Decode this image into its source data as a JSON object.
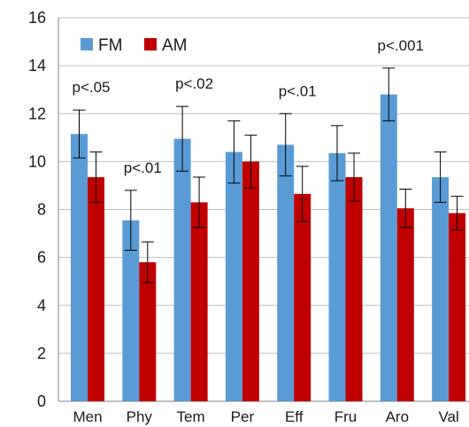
{
  "chart_data": {
    "type": "bar",
    "title": "",
    "xlabel": "",
    "ylabel": "",
    "ylim": [
      0,
      16
    ],
    "yticks": [
      "0",
      "2",
      "4",
      "6",
      "8",
      "10",
      "12",
      "14",
      "16"
    ],
    "grid": true,
    "legend_position": "top-left",
    "categories": [
      "Men",
      "Phy",
      "Tem",
      "Per",
      "Eff",
      "Fru",
      "Aro",
      "Val"
    ],
    "series": [
      {
        "name": "FM",
        "color": "#5B9BD5",
        "values": [
          11.15,
          7.55,
          10.95,
          10.4,
          10.7,
          10.35,
          12.8,
          9.35
        ],
        "errors": [
          1.0,
          1.25,
          1.35,
          1.3,
          1.3,
          1.15,
          1.1,
          1.05
        ]
      },
      {
        "name": "AM",
        "color": "#C00000",
        "values": [
          9.35,
          5.8,
          8.3,
          10.0,
          8.65,
          9.35,
          8.05,
          7.85
        ],
        "errors": [
          1.05,
          0.85,
          1.05,
          1.1,
          1.15,
          1.0,
          0.8,
          0.7
        ]
      }
    ],
    "annotations": [
      {
        "category": "Men",
        "text": "p<.05"
      },
      {
        "category": "Phy",
        "text": "p<.01"
      },
      {
        "category": "Tem",
        "text": "p<.02"
      },
      {
        "category": "Eff",
        "text": "p<.01"
      },
      {
        "category": "Aro",
        "text": "p<.001"
      }
    ]
  }
}
